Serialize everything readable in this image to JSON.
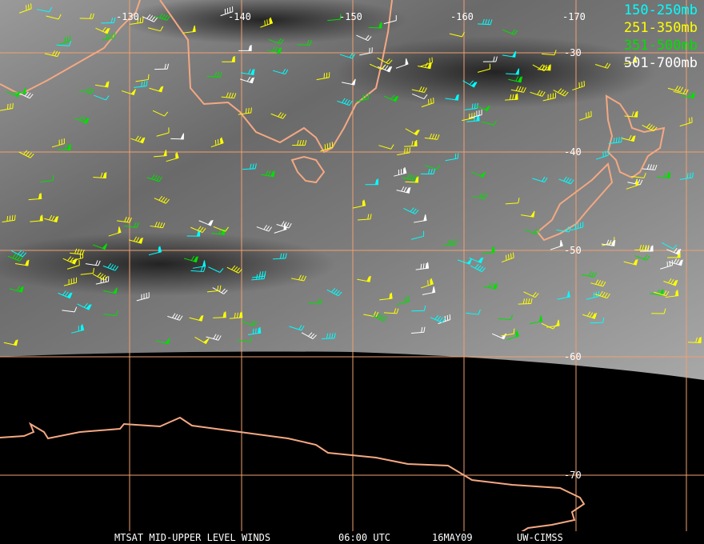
{
  "title": "MTSAT MID-UPPER LEVEL WINDS",
  "time": "06:00 UTC",
  "date": "16MAY09",
  "credit": "UW-CIMSS",
  "longitude_labels": [
    "-130",
    "-140",
    "-150",
    "-160",
    "-170"
  ],
  "latitude_labels": [
    "-30",
    "-40",
    "-50",
    "-60",
    "-70"
  ],
  "legend": [
    {
      "label": "150-250mb",
      "color": "#00ffff"
    },
    {
      "label": "251-350mb",
      "color": "#ffff00"
    },
    {
      "label": "351-500mb",
      "color": "#00ff00"
    },
    {
      "label": "501-700mb",
      "color": "#ffffff"
    }
  ],
  "colors": {
    "grid": "#f0a070",
    "coastline": "#f4a882",
    "background": "#000000"
  }
}
